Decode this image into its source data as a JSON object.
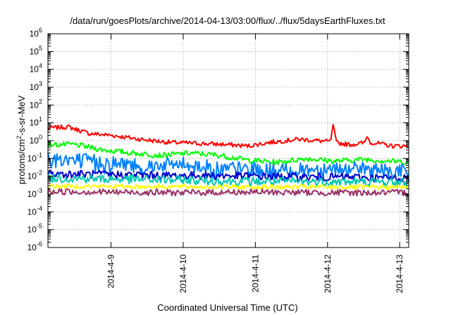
{
  "chart_data": {
    "type": "line",
    "title": "/data/run/goesPlots/archive/2014-04-13/03:00/flux/../flux/5daysEarthFluxes.txt",
    "xlabel": "Coordinated Universal Time (UTC)",
    "ylabel": {
      "main": "protons/cm",
      "sup": "2",
      "rest": "-s-sr-MeV"
    },
    "yscale": "log",
    "ylim_exp": [
      -6,
      6
    ],
    "y_tick_exponents": [
      -6,
      -5,
      -4,
      -3,
      -2,
      -1,
      0,
      1,
      2,
      3,
      4,
      5,
      6
    ],
    "y_tick_base": "10",
    "xlim": [
      "2014-04-08 03:00",
      "2014-04-13 03:00"
    ],
    "x_ticks": [
      {
        "label": "2014-4-9",
        "day": 1
      },
      {
        "label": "2014-4-10",
        "day": 2
      },
      {
        "label": "2014-4-11",
        "day": 3
      },
      {
        "label": "2014-4-12",
        "day": 4
      },
      {
        "label": "2014-4-13",
        "day": 5
      }
    ],
    "grid": true,
    "x_start_day": 0.125,
    "x_end_day": 5.125,
    "series": [
      {
        "color": "#ff0000",
        "noise": 0.05,
        "spikes": [
          [
            4.08,
            9
          ],
          [
            4.55,
            1.8
          ]
        ],
        "points": [
          [
            0.125,
            5
          ],
          [
            0.4,
            6
          ],
          [
            0.7,
            2.5
          ],
          [
            1.0,
            2
          ],
          [
            1.4,
            1.2
          ],
          [
            1.8,
            0.8
          ],
          [
            2.2,
            0.7
          ],
          [
            2.6,
            0.6
          ],
          [
            2.9,
            0.5
          ],
          [
            3.2,
            0.8
          ],
          [
            3.6,
            1.2
          ],
          [
            4.0,
            0.9
          ],
          [
            4.3,
            0.6
          ],
          [
            4.6,
            0.8
          ],
          [
            4.9,
            0.5
          ],
          [
            5.125,
            0.5
          ]
        ]
      },
      {
        "color": "#00ff00",
        "noise": 0.06,
        "spikes": [],
        "points": [
          [
            0.125,
            0.6
          ],
          [
            0.5,
            0.6
          ],
          [
            0.9,
            0.3
          ],
          [
            1.3,
            0.2
          ],
          [
            1.7,
            0.15
          ],
          [
            2.1,
            0.2
          ],
          [
            2.5,
            0.15
          ],
          [
            2.9,
            0.08
          ],
          [
            3.3,
            0.06
          ],
          [
            3.7,
            0.1
          ],
          [
            4.1,
            0.07
          ],
          [
            4.5,
            0.09
          ],
          [
            4.9,
            0.07
          ],
          [
            5.125,
            0.06
          ]
        ]
      },
      {
        "color": "#0080ff",
        "noise": 0.16,
        "spikes": [],
        "points": [
          [
            0.125,
            0.12
          ],
          [
            0.5,
            0.09
          ],
          [
            1.0,
            0.06
          ],
          [
            1.5,
            0.04
          ],
          [
            2.0,
            0.05
          ],
          [
            2.5,
            0.03
          ],
          [
            3.0,
            0.025
          ],
          [
            3.5,
            0.02
          ],
          [
            4.0,
            0.03
          ],
          [
            4.5,
            0.025
          ],
          [
            5.125,
            0.02
          ]
        ]
      },
      {
        "color": "#0000cc",
        "noise": 0.09,
        "spikes": [],
        "points": [
          [
            0.125,
            0.014
          ],
          [
            0.6,
            0.013
          ],
          [
            1.2,
            0.012
          ],
          [
            1.8,
            0.011
          ],
          [
            2.4,
            0.011
          ],
          [
            3.0,
            0.01
          ],
          [
            3.6,
            0.009
          ],
          [
            4.2,
            0.009
          ],
          [
            4.8,
            0.008
          ],
          [
            5.125,
            0.008
          ]
        ]
      },
      {
        "color": "#00c8b4",
        "noise": 0.1,
        "spikes": [],
        "points": [
          [
            0.125,
            0.008
          ],
          [
            1.0,
            0.007
          ],
          [
            2.0,
            0.006
          ],
          [
            3.0,
            0.005
          ],
          [
            4.0,
            0.005
          ],
          [
            5.125,
            0.0045
          ]
        ]
      },
      {
        "color": "#ffff00",
        "noise": 0.05,
        "spikes": [],
        "points": [
          [
            0.125,
            0.0028
          ],
          [
            1.0,
            0.0027
          ],
          [
            2.0,
            0.0026
          ],
          [
            3.0,
            0.0025
          ],
          [
            4.0,
            0.0025
          ],
          [
            5.125,
            0.0024
          ]
        ]
      },
      {
        "color": "#993366",
        "noise": 0.07,
        "spikes": [],
        "points": [
          [
            0.125,
            0.0014
          ],
          [
            1.0,
            0.0013
          ],
          [
            2.0,
            0.0012
          ],
          [
            3.0,
            0.0013
          ],
          [
            4.0,
            0.0012
          ],
          [
            5.125,
            0.0012
          ]
        ]
      }
    ]
  }
}
